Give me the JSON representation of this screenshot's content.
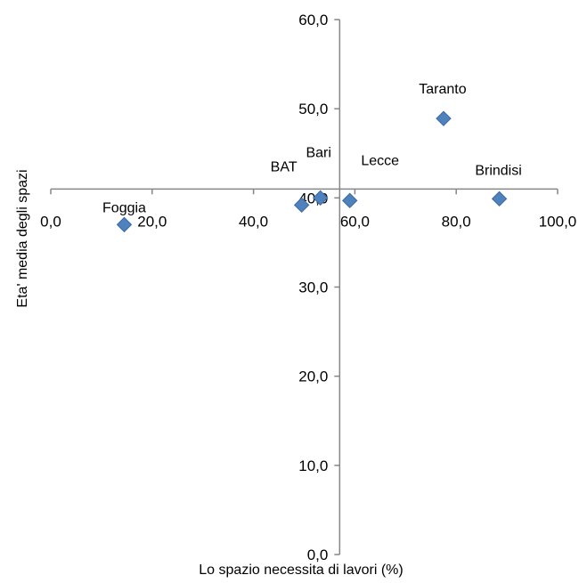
{
  "chart_data": {
    "type": "scatter",
    "xlabel": "Lo spazio necessita di lavori (%)",
    "ylabel": "Eta' media degli spazi",
    "xlim": [
      0,
      100
    ],
    "ylim": [
      0,
      60
    ],
    "x_crosses_y_at": 41,
    "y_crosses_x_at": 57,
    "x_ticks": [
      0,
      20,
      40,
      60,
      80,
      100
    ],
    "y_ticks": [
      0,
      10,
      20,
      30,
      40,
      50,
      60
    ],
    "x_tick_labels": [
      "0,0",
      "20,0",
      "40,0",
      "60,0",
      "80,0",
      "100,0"
    ],
    "y_tick_labels": [
      "0,0",
      "10,0",
      "20,0",
      "30,0",
      "40,0",
      "50,0",
      "60,0"
    ],
    "marker_color": "#4f81bd",
    "marker_shape": "diamond",
    "points": [
      {
        "label": "Foggia",
        "x": 14.5,
        "y": 37.0
      },
      {
        "label": "BAT",
        "x": 49.5,
        "y": 39.2
      },
      {
        "label": "Bari",
        "x": 53.2,
        "y": 40.0
      },
      {
        "label": "Lecce",
        "x": 59.0,
        "y": 39.7
      },
      {
        "label": "Taranto",
        "x": 77.5,
        "y": 48.9
      },
      {
        "label": "Brindisi",
        "x": 88.5,
        "y": 39.9
      }
    ]
  }
}
